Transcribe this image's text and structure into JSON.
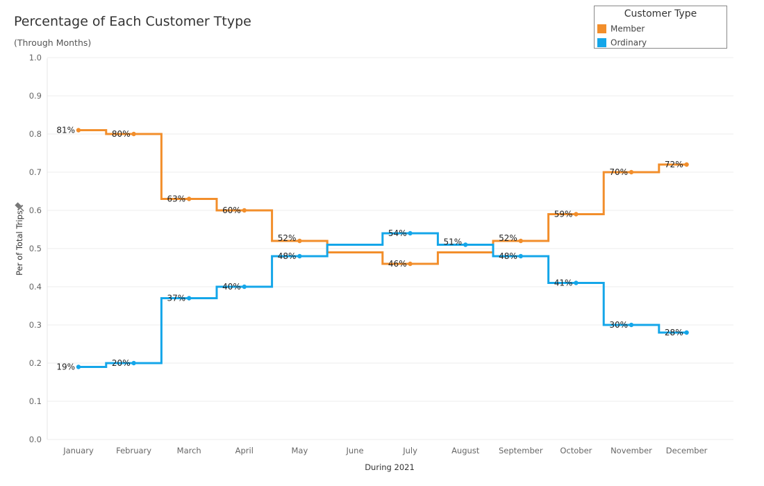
{
  "title": "Percentage of Each Customer Ttype",
  "subtitle": "(Through Months)",
  "legend": {
    "title": "Customer Type",
    "items": [
      {
        "label": "Member",
        "color": "#F28E2B"
      },
      {
        "label": "Ordinary",
        "color": "#14A6E9"
      }
    ]
  },
  "chart_data": {
    "type": "line",
    "style": "step",
    "title": "Percentage of Each Customer Ttype",
    "subtitle": "(Through Months)",
    "xlabel": "During 2021",
    "ylabel": "Per of Total Trips",
    "ylim": [
      0,
      1
    ],
    "yticks": [
      "0.0",
      "0.1",
      "0.2",
      "0.3",
      "0.4",
      "0.5",
      "0.6",
      "0.7",
      "0.8",
      "0.9",
      "1.0"
    ],
    "grid": true,
    "legend_position": "top-right",
    "categories": [
      "January",
      "February",
      "March",
      "April",
      "May",
      "June",
      "July",
      "August",
      "September",
      "October",
      "November",
      "December"
    ],
    "series": [
      {
        "name": "Member",
        "color": "#F28E2B",
        "values": [
          0.81,
          0.8,
          0.63,
          0.6,
          0.52,
          0.49,
          0.46,
          0.49,
          0.52,
          0.59,
          0.7,
          0.72
        ],
        "labels": {
          "0": "81%",
          "1": "80%",
          "2": "63%",
          "3": "60%",
          "4": "52%",
          "6": "46%",
          "8": "52%",
          "9": "59%",
          "10": "70%",
          "11": "72%"
        }
      },
      {
        "name": "Ordinary",
        "color": "#14A6E9",
        "values": [
          0.19,
          0.2,
          0.37,
          0.4,
          0.48,
          0.51,
          0.54,
          0.51,
          0.48,
          0.41,
          0.3,
          0.28
        ],
        "labels": {
          "0": "19%",
          "1": "20%",
          "2": "37%",
          "3": "40%",
          "4": "48%",
          "6": "54%",
          "7": "51%",
          "8": "48%",
          "9": "41%",
          "10": "30%",
          "11": "28%"
        }
      }
    ]
  }
}
